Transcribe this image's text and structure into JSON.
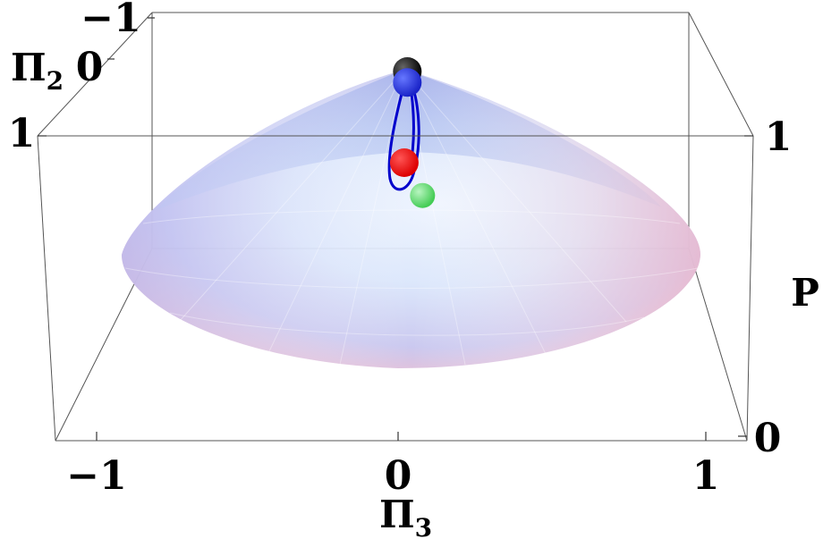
{
  "chart_data": {
    "type": "3d-surface",
    "axes": {
      "x": {
        "label": "Π",
        "label_sub": "3",
        "ticks": [
          "−1",
          "0",
          "1"
        ],
        "range": [
          -1.1,
          1.1
        ]
      },
      "y": {
        "label": "Π",
        "label_sub": "2",
        "ticks": [
          "−1",
          "0",
          "1"
        ],
        "range": [
          -1,
          1
        ]
      },
      "z": {
        "label": "P",
        "ticks": [
          "0",
          "1"
        ],
        "range": [
          0,
          1
        ]
      }
    },
    "surface": {
      "description_colors": [
        "#b9c7f2",
        "#f2c6d6",
        "#dfe9fb"
      ],
      "apex": [
        0,
        0,
        1
      ]
    },
    "points": [
      {
        "color": "#000000",
        "x": 0.02,
        "y": 0.0,
        "z": 1.0
      },
      {
        "color": "#2233dd",
        "x": 0.02,
        "y": 0.0,
        "z": 0.97
      },
      {
        "color": "#ee0000",
        "x": 0.01,
        "y": 0.0,
        "z": 0.75
      },
      {
        "color": "#55dd66",
        "x": 0.07,
        "y": 0.0,
        "z": 0.66
      }
    ],
    "trajectory": {
      "color": "#0000cc"
    },
    "box": true,
    "grid": false
  }
}
